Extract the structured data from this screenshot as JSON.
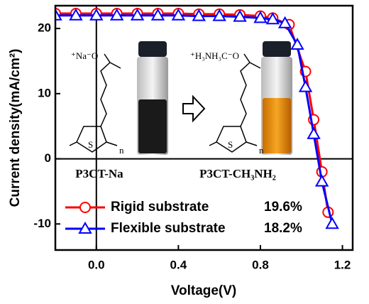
{
  "chart_data": {
    "type": "line",
    "x_label": "Voltage(V)",
    "y_label": "Current density(mA/cm²)",
    "xlim": [
      -0.2,
      1.25
    ],
    "ylim": [
      -14,
      23.5
    ],
    "xticks": [
      {
        "value": 0,
        "label": "0.0"
      },
      0.4,
      0.8,
      1.2
    ],
    "yticks": [
      -10,
      0,
      10,
      20
    ],
    "legend": "lower center",
    "series": [
      {
        "name": "Rigid substrate",
        "efficiency": "19.6%",
        "color": "#ff0000",
        "marker": "circle",
        "x": [
          -0.2,
          -0.1,
          0,
          0.1,
          0.2,
          0.3,
          0.4,
          0.5,
          0.6,
          0.7,
          0.8,
          0.86,
          0.94,
          1.02,
          1.06,
          1.1,
          1.13
        ],
        "values": [
          22.3,
          22.3,
          22.3,
          22.3,
          22.3,
          22.3,
          22.3,
          22.2,
          22.2,
          22.1,
          21.9,
          21.6,
          20.6,
          13.4,
          6,
          -2,
          -8.2
        ]
      },
      {
        "name": "Flexible substrate",
        "efficiency": "18.2%",
        "color": "#0000ff",
        "marker": "triangle",
        "x": [
          -0.2,
          -0.1,
          0,
          0.1,
          0.2,
          0.3,
          0.4,
          0.5,
          0.6,
          0.7,
          0.8,
          0.86,
          0.92,
          0.98,
          1.02,
          1.06,
          1.1,
          1.15
        ],
        "values": [
          22,
          22,
          22,
          22,
          22,
          22,
          22,
          21.9,
          21.9,
          21.8,
          21.6,
          21.4,
          20.8,
          17.5,
          11,
          3.8,
          -3.5,
          -10
        ]
      }
    ],
    "annotations": [
      "⁺Na⁻O",
      "S",
      "n",
      "P3CT-Na",
      "⁺H₃NH₃C⁻O",
      "S",
      "n",
      "P3CT-CH₃NH₂"
    ]
  }
}
